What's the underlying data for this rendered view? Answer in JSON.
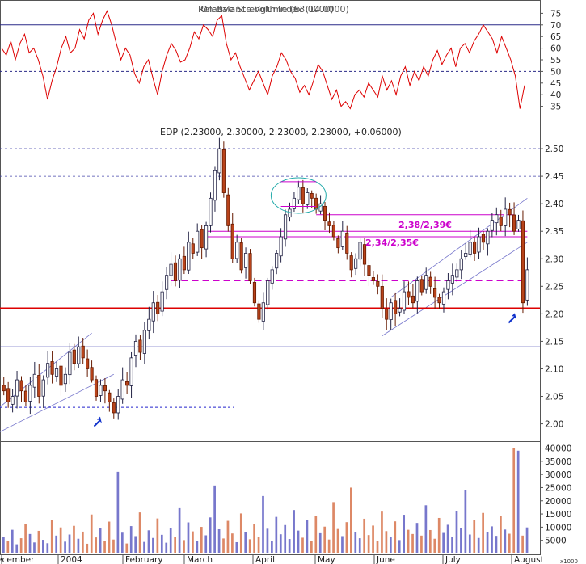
{
  "chart_data": [
    {
      "type": "line",
      "panel": "rsi",
      "title": "Relative Strength Index (14.0000)",
      "overlay_title": "On Balance Volume (63.0000)",
      "ylim": [
        30,
        80
      ],
      "ticks": [
        35,
        40,
        45,
        50,
        55,
        60,
        65,
        70,
        75
      ],
      "bands": {
        "upper": 70,
        "lower": 30,
        "mid": 50
      },
      "series": [
        {
          "color": "#dd0000",
          "values": [
            60,
            57,
            63,
            55,
            62,
            66,
            58,
            60,
            55,
            48,
            38,
            46,
            52,
            60,
            65,
            58,
            60,
            68,
            64,
            72,
            75,
            66,
            72,
            76,
            70,
            62,
            55,
            60,
            57,
            49,
            45,
            52,
            55,
            47,
            40,
            50,
            57,
            62,
            59,
            54,
            55,
            60,
            67,
            64,
            70,
            68,
            65,
            72,
            74,
            62,
            55,
            58,
            52,
            47,
            42,
            46,
            50,
            45,
            40,
            48,
            52,
            58,
            55,
            50,
            47,
            41,
            44,
            40,
            46,
            53,
            50,
            44,
            38,
            42,
            35,
            37,
            34,
            40,
            42,
            39,
            45,
            42,
            39,
            48,
            42,
            46,
            40,
            48,
            52,
            44,
            50,
            46,
            52,
            48,
            55,
            59,
            53,
            57,
            60,
            52,
            60,
            62,
            58,
            63,
            66,
            70,
            67,
            64,
            58,
            65,
            60,
            55,
            48,
            34,
            44
          ]
        }
      ]
    },
    {
      "type": "candlestick",
      "panel": "price",
      "title": "EDP (2.23000, 2.30000, 2.23000, 2.28000, +0.06000)",
      "x_labels": [
        "December",
        "2004",
        "February",
        "March",
        "April",
        "May",
        "June",
        "July",
        "August"
      ],
      "ylim": [
        1.97,
        2.55
      ],
      "ticks": [
        2.0,
        2.05,
        2.1,
        2.15,
        2.2,
        2.25,
        2.3,
        2.35,
        2.4,
        2.45,
        2.5
      ],
      "closes": [
        2.06,
        2.04,
        2.05,
        2.08,
        2.06,
        2.04,
        2.07,
        2.09,
        2.05,
        2.08,
        2.11,
        2.09,
        2.1,
        2.07,
        2.09,
        2.13,
        2.11,
        2.14,
        2.12,
        2.1,
        2.08,
        2.05,
        2.07,
        2.06,
        2.04,
        2.02,
        2.05,
        2.08,
        2.07,
        2.12,
        2.15,
        2.13,
        2.17,
        2.19,
        2.22,
        2.2,
        2.24,
        2.27,
        2.29,
        2.26,
        2.3,
        2.28,
        2.33,
        2.31,
        2.35,
        2.32,
        2.36,
        2.41,
        2.46,
        2.5,
        2.42,
        2.36,
        2.3,
        2.33,
        2.28,
        2.31,
        2.26,
        2.22,
        2.19,
        2.22,
        2.26,
        2.28,
        2.31,
        2.34,
        2.38,
        2.39,
        2.41,
        2.43,
        2.4,
        2.42,
        2.41,
        2.39,
        2.4,
        2.37,
        2.36,
        2.34,
        2.32,
        2.35,
        2.31,
        2.28,
        2.3,
        2.33,
        2.29,
        2.27,
        2.26,
        2.25,
        2.21,
        2.19,
        2.22,
        2.2,
        2.21,
        2.24,
        2.23,
        2.22,
        2.26,
        2.24,
        2.27,
        2.25,
        2.23,
        2.22,
        2.24,
        2.26,
        2.27,
        2.28,
        2.3,
        2.31,
        2.33,
        2.31,
        2.34,
        2.33,
        2.35,
        2.37,
        2.38,
        2.36,
        2.39,
        2.38,
        2.35,
        2.37,
        2.22,
        2.28
      ],
      "horizontal_levels": [
        {
          "value": 2.21,
          "color": "#dd0000",
          "style": "solid"
        },
        {
          "value": 2.14,
          "color": "#3333aa",
          "style": "solid"
        },
        {
          "value": 2.34,
          "color": "#cc00cc",
          "style": "solid"
        },
        {
          "value": 2.35,
          "color": "#cc00cc",
          "style": "solid"
        },
        {
          "value": 2.38,
          "color": "#cc00cc",
          "style": "solid"
        },
        {
          "value": 2.26,
          "color": "#cc00cc",
          "style": "dashed"
        },
        {
          "value": 2.03,
          "color": "#2222cc",
          "style": "dotted"
        }
      ],
      "annotations": [
        {
          "text": "2,38/2,39€",
          "value": 2.38,
          "color": "#cc00cc"
        },
        {
          "text": "2,34/2,35€",
          "value": 2.34,
          "color": "#cc00cc"
        }
      ]
    },
    {
      "type": "bar",
      "panel": "volume",
      "axis_note": "x1000",
      "ylim": [
        0,
        42000
      ],
      "ticks": [
        5000,
        10000,
        15000,
        20000,
        25000,
        30000,
        35000,
        40000
      ],
      "colors": {
        "up": "#7777cc",
        "down": "#dd8866"
      },
      "values": [
        6200,
        4800,
        9000,
        3500,
        5800,
        11200,
        7400,
        4200,
        8600,
        5200,
        3900,
        12800,
        6800,
        9900,
        4500,
        7200,
        10500,
        5600,
        8300,
        3700,
        14800,
        6100,
        9500,
        4900,
        12100,
        5300,
        31000,
        7900,
        3800,
        10400,
        6600,
        15600,
        4400,
        8800,
        5900,
        13300,
        7100,
        4100,
        9700,
        6300,
        17200,
        5100,
        11800,
        8400,
        4600,
        10100,
        6900,
        13700,
        25800,
        9200,
        5700,
        12400,
        7600,
        4300,
        15200,
        8100,
        5400,
        11300,
        6400,
        21800,
        9400,
        4700,
        13900,
        7300,
        10800,
        5500,
        16500,
        8700,
        6000,
        12700,
        4800,
        14300,
        7700,
        10200,
        5300,
        19500,
        9300,
        6600,
        11900,
        25000,
        8200,
        5800,
        13200,
        7000,
        10600,
        4900,
        15900,
        8500,
        6200,
        12200,
        5100,
        14700,
        9000,
        7400,
        11600,
        6800,
        18300,
        8900,
        5600,
        13500,
        7800,
        10900,
        6300,
        16200,
        9600,
        24200,
        7200,
        12600,
        5900,
        15400,
        8000,
        10300,
        6700,
        14100,
        9100,
        7500,
        40000,
        39000,
        6800,
        9900
      ]
    }
  ]
}
